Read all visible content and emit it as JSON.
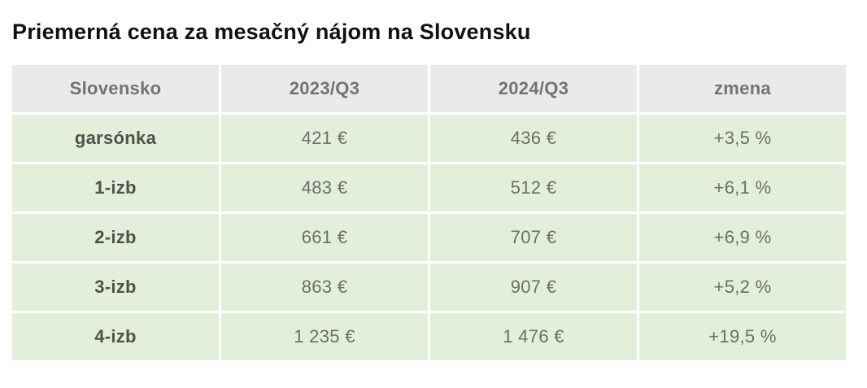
{
  "title": "Priemerná cena za mesačný nájom na Slovensku",
  "table": {
    "columns": [
      "Slovensko",
      "2023/Q3",
      "2024/Q3",
      "zmena"
    ],
    "rows": [
      {
        "label": "garsónka",
        "q3_2023": "421 €",
        "q3_2024": "436 €",
        "change": "+3,5 %"
      },
      {
        "label": "1-izb",
        "q3_2023": "483 €",
        "q3_2024": "512 €",
        "change": "+6,1 %"
      },
      {
        "label": "2-izb",
        "q3_2023": "661 €",
        "q3_2024": "707 €",
        "change": "+6,9 %"
      },
      {
        "label": "3-izb",
        "q3_2023": "863 €",
        "q3_2024": "907 €",
        "change": "+5,2 %"
      },
      {
        "label": "4-izb",
        "q3_2023": "1 235 €",
        "q3_2024": "1 476 €",
        "change": "+19,5 %"
      }
    ]
  },
  "colors": {
    "header_bg": "#eaeae9",
    "row_bg": "#e3eedb",
    "header_text": "#737373",
    "label_text": "#4e524c",
    "value_text": "#6b7068",
    "title_text": "#111111",
    "page_bg": "#ffffff"
  },
  "chart_data": {
    "type": "table",
    "title": "Priemerná cena za mesačný nájom na Slovensku",
    "columns": [
      "Slovensko",
      "2023/Q3",
      "2024/Q3",
      "zmena"
    ],
    "categories": [
      "garsónka",
      "1-izb",
      "2-izb",
      "3-izb",
      "4-izb"
    ],
    "series": [
      {
        "name": "2023/Q3",
        "unit": "€",
        "values": [
          421,
          483,
          661,
          863,
          1235
        ]
      },
      {
        "name": "2024/Q3",
        "unit": "€",
        "values": [
          436,
          512,
          707,
          907,
          1476
        ]
      },
      {
        "name": "zmena",
        "unit": "%",
        "values": [
          3.5,
          6.1,
          6.9,
          5.2,
          19.5
        ]
      }
    ],
    "rows": [
      [
        "garsónka",
        "421 €",
        "436 €",
        "+3,5 %"
      ],
      [
        "1-izb",
        "483 €",
        "512 €",
        "+6,1 %"
      ],
      [
        "2-izb",
        "661 €",
        "707 €",
        "+6,9 %"
      ],
      [
        "3-izb",
        "863 €",
        "907 €",
        "+5,2 %"
      ],
      [
        "4-izb",
        "1 235 €",
        "1 476 €",
        "+19,5 %"
      ]
    ]
  }
}
